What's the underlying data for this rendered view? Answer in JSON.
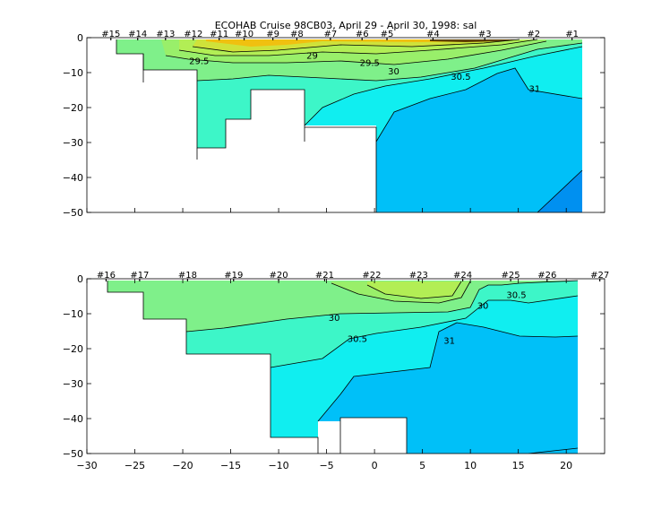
{
  "chart_data": [
    {
      "type": "contour",
      "title": "ECOHAB Cruise 98CB03, April 29 - April 30, 1998: sal",
      "xlim": [
        -30,
        24
      ],
      "ylim": [
        -50,
        0
      ],
      "yticks": [
        0,
        -10,
        -20,
        -30,
        -40,
        -50
      ],
      "show_x_tick_labels": false,
      "colors": {
        "c28": "#cfe23a",
        "c28_5": "#b2ee55",
        "c29": "#99ef6a",
        "c29_5": "#7ff08a",
        "c30": "#3df6c8",
        "c30_5": "#10eef0",
        "c31": "#00c0f8",
        "c31_5": "#0090f0",
        "core": "#f0c010",
        "dark": "#604000"
      },
      "stations": [
        {
          "label": "#15",
          "x": -27.5
        },
        {
          "label": "#14",
          "x": -24.7
        },
        {
          "label": "#13",
          "x": -21.8
        },
        {
          "label": "#12",
          "x": -18.9
        },
        {
          "label": "#11",
          "x": -16.2
        },
        {
          "label": "#10",
          "x": -13.6
        },
        {
          "label": "#9",
          "x": -10.6
        },
        {
          "label": "#8",
          "x": -8.1
        },
        {
          "label": "#7",
          "x": -4.6
        },
        {
          "label": "#6",
          "x": -1.3
        },
        {
          "label": "#5",
          "x": 1.3
        },
        {
          "label": "#4",
          "x": 6.1
        },
        {
          "label": "#3",
          "x": 11.5
        },
        {
          "label": "#2",
          "x": 16.6
        },
        {
          "label": "#1",
          "x": 20.6
        }
      ],
      "contour_labels": [
        {
          "text": "29.5",
          "x": -18.3,
          "y": -6.5
        },
        {
          "text": "29",
          "x": -6.5,
          "y": -5
        },
        {
          "text": "29.5",
          "x": -0.5,
          "y": -7
        },
        {
          "text": "30",
          "x": 2.0,
          "y": -9.5
        },
        {
          "text": "30.5",
          "x": 9.0,
          "y": -11
        },
        {
          "text": "31",
          "x": 16.7,
          "y": -14.5
        }
      ]
    },
    {
      "type": "contour",
      "xlim": [
        -30,
        24
      ],
      "ylim": [
        -50,
        0
      ],
      "xticks": [
        -30,
        -25,
        -20,
        -15,
        -10,
        -5,
        0,
        5,
        10,
        15,
        20
      ],
      "yticks": [
        0,
        -10,
        -20,
        -30,
        -40,
        -50
      ],
      "show_x_tick_labels": true,
      "colors": {
        "c29_5": "#7ff08a",
        "c30": "#3df6c8",
        "c30_5": "#10eef0",
        "c31": "#00c0f8",
        "c31_5": "#0090f0",
        "core": "#b2ee55",
        "mid": "#99ef6a"
      },
      "stations": [
        {
          "label": "#16",
          "x": -28.0
        },
        {
          "label": "#17",
          "x": -24.5
        },
        {
          "label": "#18",
          "x": -19.5
        },
        {
          "label": "#19",
          "x": -14.7
        },
        {
          "label": "#20",
          "x": -10.0
        },
        {
          "label": "#21",
          "x": -5.2
        },
        {
          "label": "#22",
          "x": -0.3
        },
        {
          "label": "#23",
          "x": 4.6
        },
        {
          "label": "#24",
          "x": 9.2
        },
        {
          "label": "#25",
          "x": 14.2
        },
        {
          "label": "#26",
          "x": 18.0
        },
        {
          "label": "#27",
          "x": 23.5
        }
      ],
      "contour_labels": [
        {
          "text": "30",
          "x": -4.2,
          "y": -11
        },
        {
          "text": "30.5",
          "x": -1.8,
          "y": -17
        },
        {
          "text": "30",
          "x": 11.3,
          "y": -7.5
        },
        {
          "text": "30.5",
          "x": 14.8,
          "y": -4.5
        },
        {
          "text": "31",
          "x": 7.8,
          "y": -17.5
        }
      ]
    }
  ]
}
